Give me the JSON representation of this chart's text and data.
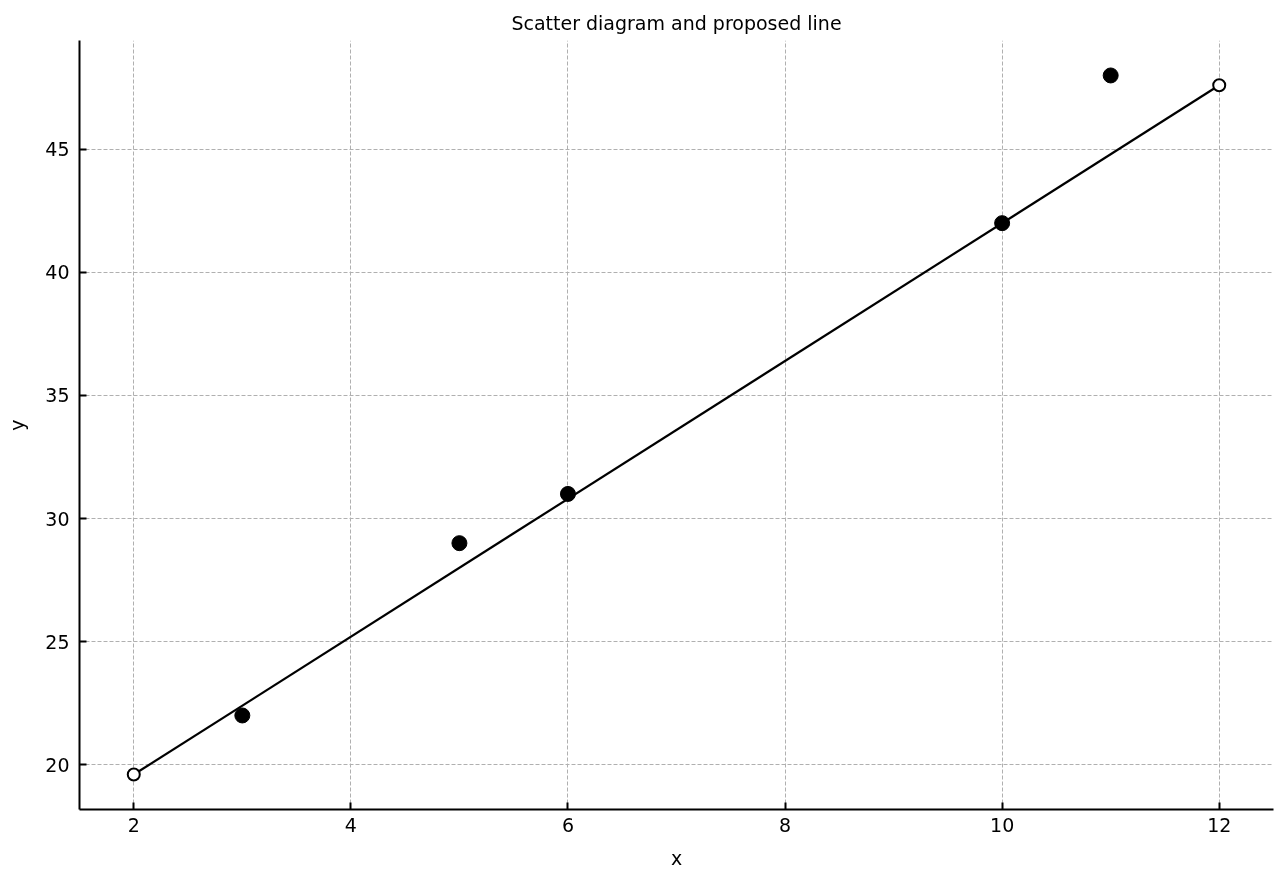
{
  "chart_data": {
    "type": "scatter",
    "title": "Scatter diagram and proposed line",
    "xlabel": "x",
    "ylabel": "y",
    "xlim": [
      1.5,
      12.5
    ],
    "ylim": [
      18.18,
      49.42
    ],
    "xticks": [
      2,
      4,
      6,
      8,
      10,
      12
    ],
    "yticks": [
      20,
      25,
      30,
      35,
      40,
      45
    ],
    "grid": true,
    "marker": "circle",
    "series": [
      {
        "color": "#000000",
        "x": [
          3,
          5,
          6,
          10,
          11
        ],
        "values": [
          22,
          29,
          31,
          42,
          48
        ]
      },
      {
        "type": "line",
        "color": "#000000",
        "x": [
          2,
          12
        ],
        "values": [
          19.6,
          47.6
        ],
        "line_style": "solid"
      }
    ]
  }
}
